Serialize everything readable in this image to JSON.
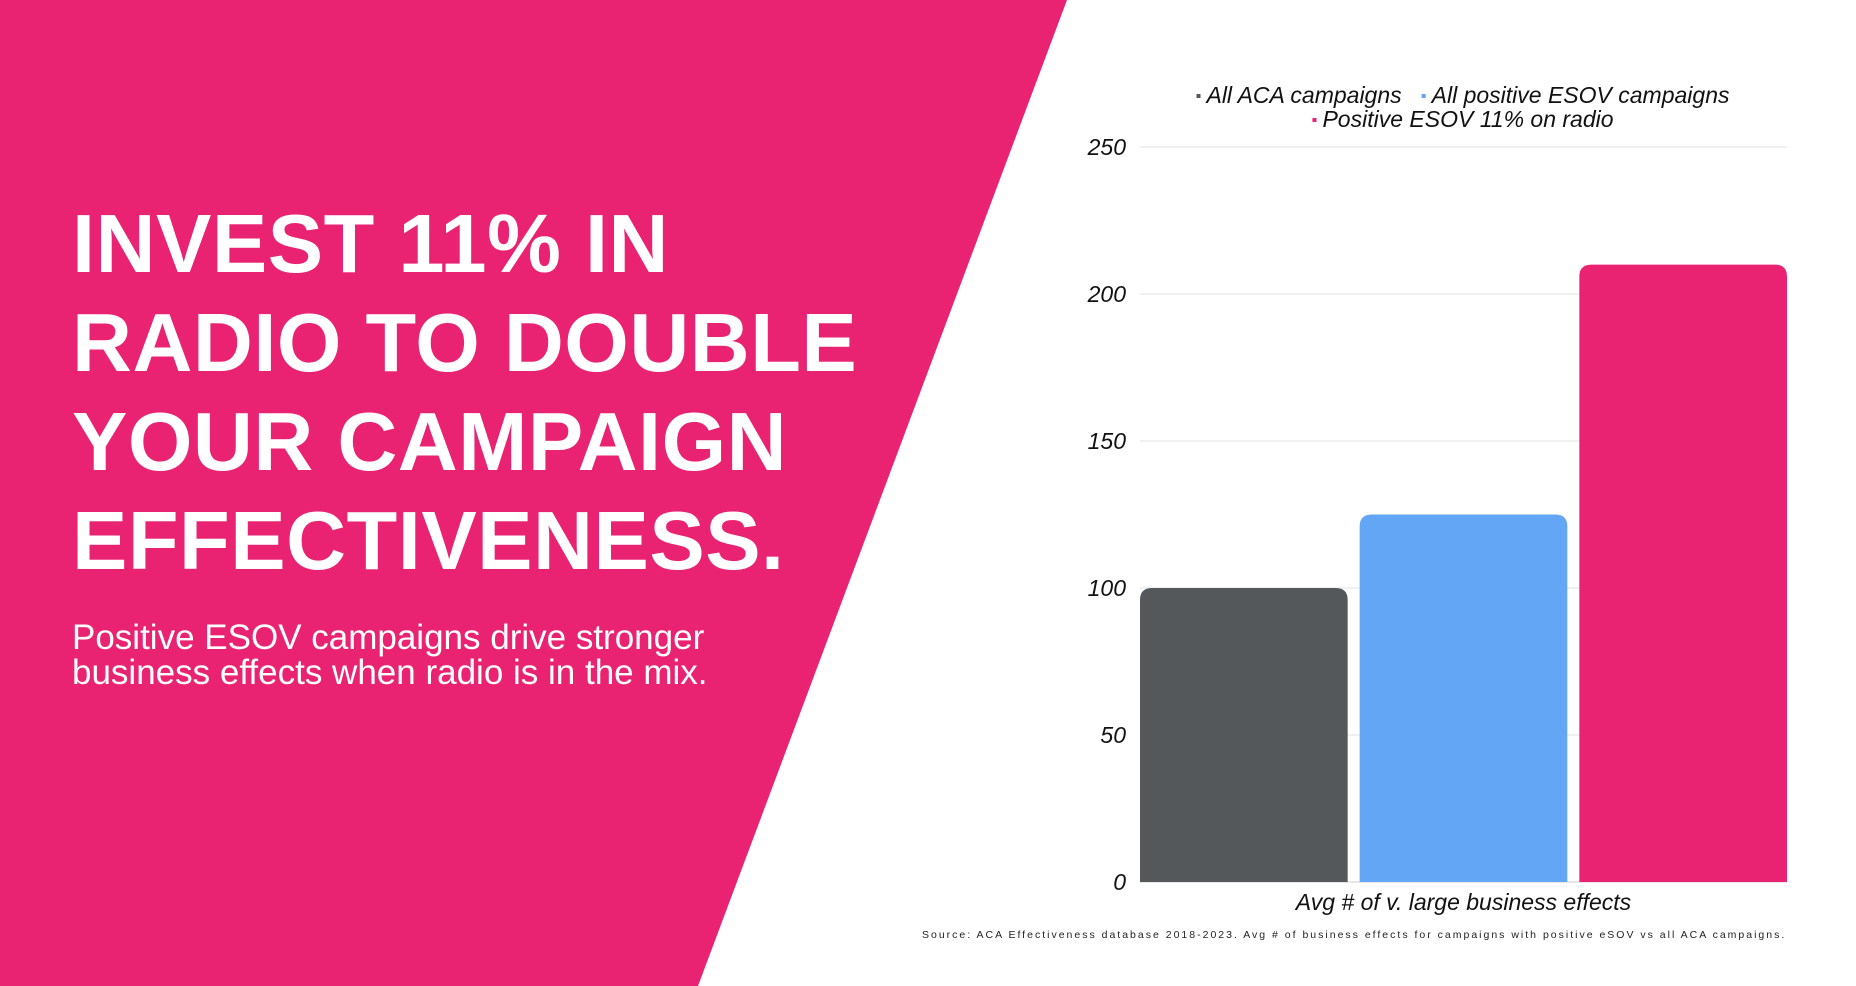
{
  "colors": {
    "pink": "#E92371",
    "dark_gray": "#54585A",
    "light_blue": "#63A6F6",
    "white": "#FFFFFF"
  },
  "headline": {
    "lines": [
      "INVEST 11% IN",
      "RADIO TO DOUBLE",
      "YOUR CAMPAIGN",
      "EFFECTIVENESS."
    ]
  },
  "subtitle": {
    "lines": [
      "Positive ESOV campaigns drive stronger",
      "business effects when radio is in the mix."
    ]
  },
  "source": "Source: ACA Effectiveness database 2018-2023. Avg # of business effects for campaigns with positive eSOV vs all ACA campaigns.",
  "chart_data": {
    "type": "bar",
    "categories": [
      "Avg # of v. large business effects"
    ],
    "series": [
      {
        "name": "All ACA campaigns",
        "values": [
          100
        ],
        "color": "#54585A"
      },
      {
        "name": "All positive ESOV campaigns",
        "values": [
          125
        ],
        "color": "#63A6F6"
      },
      {
        "name": "Positive ESOV 11% on radio",
        "values": [
          210
        ],
        "color": "#E92371"
      }
    ],
    "title": "",
    "xlabel": "",
    "ylabel": "",
    "ylim": [
      0,
      250
    ],
    "yticks": [
      0,
      50,
      100,
      150,
      200,
      250
    ],
    "grid": true,
    "legend_position": "top"
  }
}
